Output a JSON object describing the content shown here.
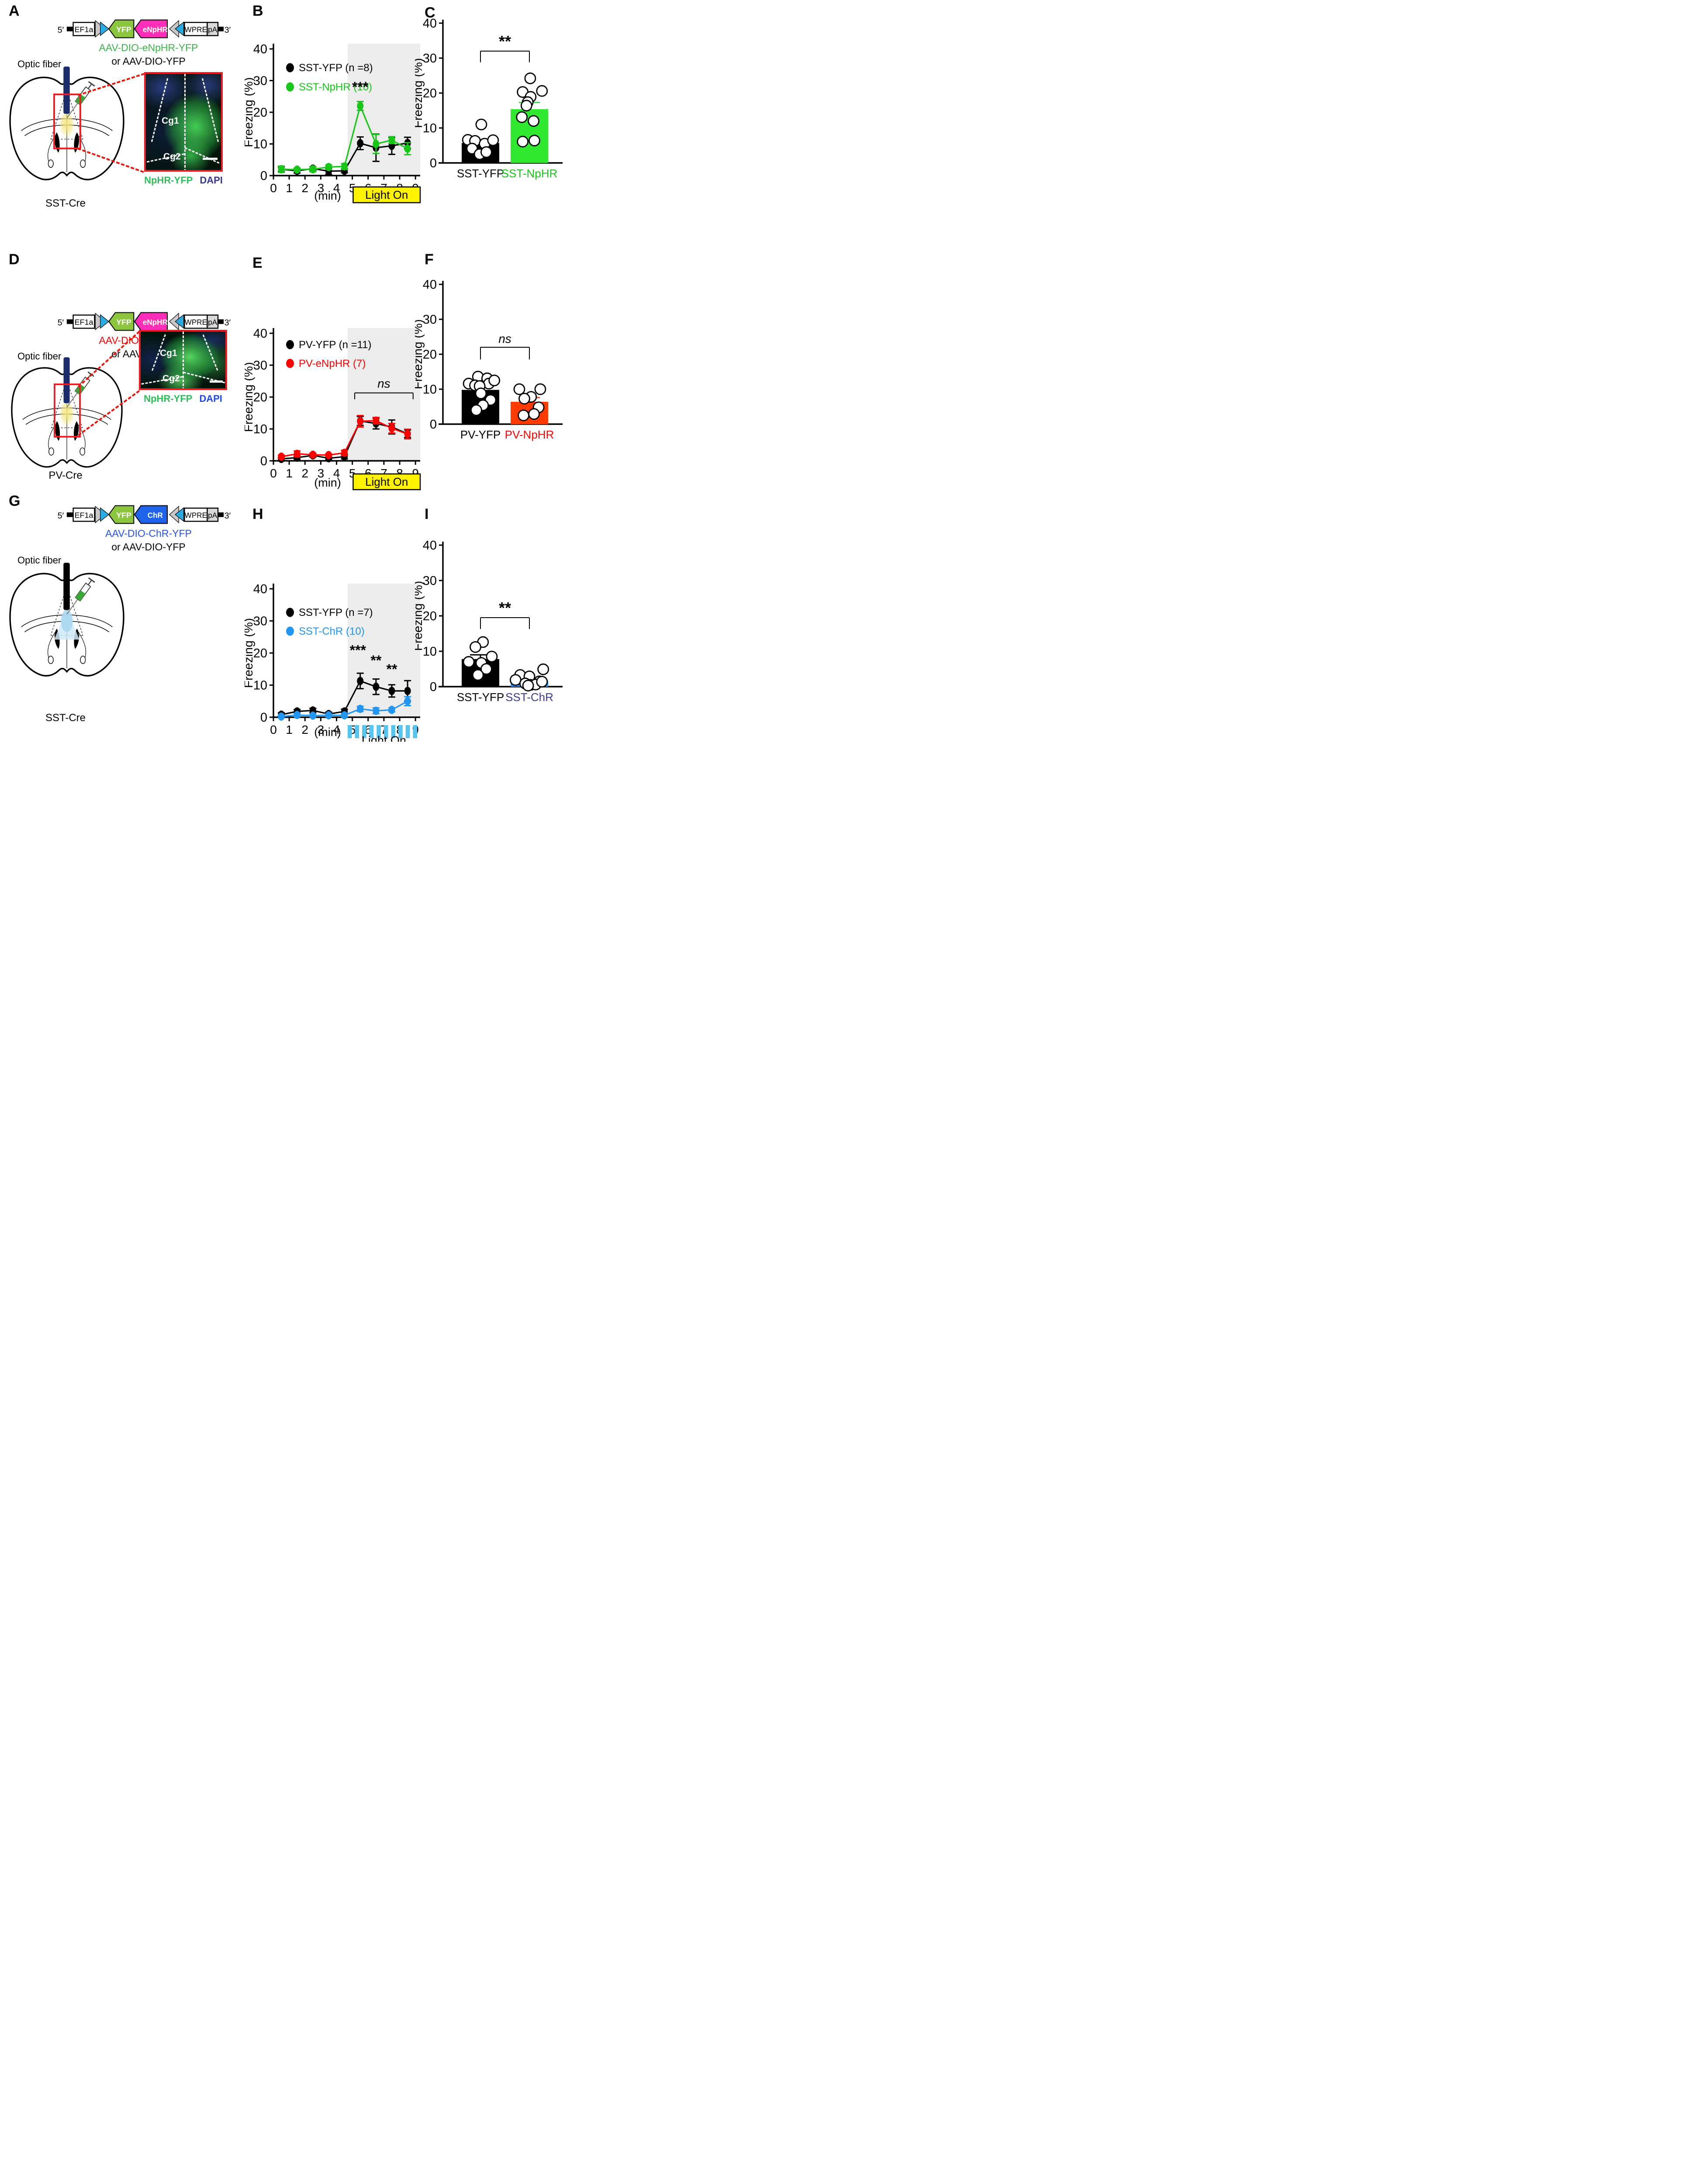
{
  "colors": {
    "green_series": "#17C617",
    "green_bar": "#2FE82F",
    "green_text": "#3BB54A",
    "stain_green": "#2DBE5A",
    "dapi_navy": "#35359B",
    "dapi_blue": "#1F49E8",
    "red": "#FF0000",
    "red_bar": "#FF3B00",
    "blue_series": "#2196F3",
    "blue_text": "#1A53E8",
    "blue_bar": "#1E90FF",
    "chr_box_blue": "#1E63E9",
    "chr_label_purple": "#3D3D94",
    "magenta": "#FF2DB8",
    "yfp_green": "#8CC63F",
    "lox_cyan": "#29ABE2",
    "lox_gray": "#C9C9C9",
    "yellow": "#FFF200",
    "shade_gray": "#ECECEC",
    "fiber_navy": "#1A2C6B",
    "fiber_black": "#000000",
    "light_dash_blue": "#58C5F0"
  },
  "panels": {
    "A": {
      "letter": "A",
      "construct": {
        "five": "5′",
        "three": "3′",
        "promoter": "EF1a",
        "gene1": "YFP",
        "gene2": "eNpHR",
        "gene2_color": "#FF2DB8",
        "wpre": "WPRE",
        "pa": "pA"
      },
      "virus1": "AAV-DIO-eNpHR-YFP",
      "virus1_color": "#3BB54A",
      "virus2": "or AAV-DIO-YFP",
      "optic_fiber": "Optic fiber",
      "inset": {
        "region_upper": "Cg1",
        "region_lower": "Cg2",
        "stain1": "NpHR-YFP",
        "stain1_color": "#2DBE5A",
        "stain2": "DAPI",
        "stain2_color": "#35359B"
      },
      "mouse": "SST-Cre"
    },
    "D": {
      "letter": "D",
      "construct": {
        "five": "5′",
        "three": "3′",
        "promoter": "EF1a",
        "gene1": "YFP",
        "gene2": "eNpHR",
        "gene2_color": "#FF2DB8",
        "wpre": "WPRE",
        "pa": "pA"
      },
      "virus1": "AAV-DIO-eNpHR-YFP",
      "virus1_color": "#FF0000",
      "virus2": "or AAV-DIO-YFP",
      "optic_fiber": "Optic fiber",
      "inset": {
        "region_upper": "Cg1",
        "region_lower": "Cg2",
        "stain1": "NpHR-YFP",
        "stain1_color": "#2DBE5A",
        "stain2": "DAPI",
        "stain2_color": "#1F49E8"
      },
      "mouse": "PV-Cre"
    },
    "G": {
      "letter": "G",
      "construct": {
        "five": "5′",
        "three": "3′",
        "promoter": "EF1a",
        "gene1": "YFP",
        "gene2": "ChR",
        "gene2_color": "#1E63E9",
        "wpre": "WPRE",
        "pa": "pA"
      },
      "virus1": "AAV-DIO-ChR-YFP",
      "virus1_color": "#2353E8",
      "virus2": "or AAV-DIO-YFP",
      "optic_fiber": "Optic fiber",
      "mouse": "SST-Cre"
    },
    "B": {
      "letter": "B"
    },
    "C": {
      "letter": "C"
    },
    "E": {
      "letter": "E"
    },
    "F": {
      "letter": "F"
    },
    "H": {
      "letter": "H"
    },
    "I": {
      "letter": "I"
    }
  },
  "chart_data": [
    {
      "id": "B",
      "type": "line",
      "xlabel": "(min)",
      "ylabel": "Freezing (%)",
      "xlim": [
        0,
        9.3
      ],
      "ylim": [
        0,
        40
      ],
      "xticks": [
        0,
        1,
        2,
        3,
        4,
        5,
        6,
        7,
        8,
        9
      ],
      "yticks": [
        0,
        10,
        20,
        30,
        40
      ],
      "shade_from": 4.7,
      "x": [
        0.5,
        1.5,
        2.5,
        3.5,
        4.5,
        5.5,
        6.5,
        7.5,
        8.5
      ],
      "series": [
        {
          "name": "SST-YFP (n =8)",
          "color": "#000000",
          "values": [
            2.0,
            1.5,
            2.2,
            1.4,
            1.5,
            10.2,
            8.8,
            9.4,
            10.3
          ],
          "errors": [
            0.8,
            0.7,
            0.6,
            1.0,
            0.6,
            2.0,
            4.3,
            2.7,
            1.8
          ]
        },
        {
          "name": "SST-NpHR (10)",
          "color": "#17C617",
          "values": [
            2.0,
            1.9,
            2.0,
            2.7,
            2.9,
            22.0,
            10.0,
            11.2,
            8.5
          ],
          "errors": [
            1.0,
            0.5,
            0.8,
            0.7,
            0.9,
            1.4,
            3.0,
            1.1,
            1.9
          ]
        }
      ],
      "annotations": [
        {
          "text": "***",
          "x": 5.5,
          "y": 26.5
        }
      ],
      "light": {
        "style": "solid",
        "label": "Light On",
        "from": 5.05,
        "to": 9.3
      }
    },
    {
      "id": "E",
      "type": "line",
      "xlabel": "(min)",
      "ylabel": "Freezing (%)",
      "xlim": [
        0,
        9.3
      ],
      "ylim": [
        0,
        40
      ],
      "xticks": [
        0,
        1,
        2,
        3,
        4,
        5,
        6,
        7,
        8,
        9
      ],
      "yticks": [
        0,
        10,
        20,
        30,
        40
      ],
      "shade_from": 4.7,
      "x": [
        0.5,
        1.5,
        2.5,
        3.5,
        4.5,
        5.5,
        6.5,
        7.5,
        8.5
      ],
      "series": [
        {
          "name": "PV-YFP (n =11)",
          "color": "#000000",
          "values": [
            0.6,
            1.0,
            1.7,
            0.8,
            1.3,
            12.5,
            11.7,
            10.6,
            8.5
          ],
          "errors": [
            0.5,
            0.5,
            0.6,
            0.5,
            0.7,
            1.4,
            1.7,
            2.2,
            1.2
          ]
        },
        {
          "name": "PV-eNpHR (7)",
          "color": "#FF0000",
          "values": [
            1.3,
            2.2,
            1.9,
            1.8,
            2.5,
            12.4,
            12.6,
            10.2,
            8.4
          ],
          "errors": [
            0.5,
            0.9,
            0.5,
            0.4,
            0.8,
            1.8,
            1.0,
            1.5,
            1.5
          ]
        }
      ],
      "bracket": {
        "label": "ns",
        "from": 5.15,
        "to": 8.85,
        "y": 21.3,
        "drop": 2.0
      },
      "light": {
        "style": "solid",
        "label": "Light On",
        "from": 5.05,
        "to": 9.3
      }
    },
    {
      "id": "H",
      "type": "line",
      "xlabel": "(min)",
      "ylabel": "Freezing (%)",
      "xlim": [
        0,
        9.3
      ],
      "ylim": [
        0,
        40
      ],
      "xticks": [
        0,
        1,
        2,
        3,
        4,
        5,
        6,
        7,
        8,
        9
      ],
      "yticks": [
        0,
        10,
        20,
        30,
        40
      ],
      "shade_from": 4.7,
      "x": [
        0.5,
        1.5,
        2.5,
        3.5,
        4.5,
        5.5,
        6.5,
        7.5,
        8.5
      ],
      "series": [
        {
          "name": "SST-YFP (n =7)",
          "color": "#000000",
          "values": [
            0.8,
            1.8,
            2.1,
            1.0,
            1.8,
            11.3,
            9.5,
            8.2,
            8.2
          ],
          "errors": [
            0.6,
            0.6,
            0.7,
            0.6,
            0.7,
            2.4,
            2.4,
            1.9,
            3.2
          ]
        },
        {
          "name": "SST-ChR (10)",
          "color": "#2196F3",
          "values": [
            0.2,
            0.7,
            0.5,
            0.6,
            0.6,
            2.6,
            2.0,
            2.3,
            5.0
          ],
          "errors": [
            0.4,
            0.5,
            0.4,
            0.4,
            0.5,
            0.8,
            0.9,
            0.6,
            1.4
          ]
        }
      ],
      "annotations": [
        {
          "text": "***",
          "x": 5.35,
          "y": 19.4
        },
        {
          "text": "**",
          "x": 6.5,
          "y": 16.2
        },
        {
          "text": "**",
          "x": 7.5,
          "y": 13.5
        }
      ],
      "light": {
        "style": "dashes",
        "label": "Light On",
        "from": 4.7,
        "to": 9.3,
        "n_dashes": 10
      }
    },
    {
      "id": "C",
      "type": "bar",
      "ylabel": "Freezing (%)",
      "ylim": [
        0,
        40
      ],
      "yticks": [
        0,
        10,
        20,
        30,
        40
      ],
      "groups": [
        {
          "label": "SST-YFP",
          "label_color": "#000000",
          "bar_color": "#000000",
          "err_color": "#000000",
          "mean": 5.7,
          "sem": 0.9,
          "points": [
            [
              -0.3,
              6.6
            ],
            [
              -0.13,
              6.3
            ],
            [
              0.1,
              5.5
            ],
            [
              0.3,
              6.5
            ],
            [
              -0.2,
              4.1
            ],
            [
              -0.02,
              2.5
            ],
            [
              0.14,
              3.1
            ],
            [
              0.02,
              11.0
            ]
          ]
        },
        {
          "label": "SST-NpHR",
          "label_color": "#17C617",
          "bar_color": "#2FE82F",
          "err_color": "#2FE82F",
          "mean": 15.4,
          "sem": 1.9,
          "points": [
            [
              0.02,
              24.2
            ],
            [
              -0.16,
              20.3
            ],
            [
              0.3,
              20.6
            ],
            [
              0.03,
              18.9
            ],
            [
              -0.04,
              17.4
            ],
            [
              -0.07,
              16.4
            ],
            [
              -0.18,
              13.1
            ],
            [
              0.1,
              12.0
            ],
            [
              -0.16,
              6.1
            ],
            [
              0.12,
              6.4
            ]
          ]
        }
      ],
      "sig": {
        "label": "**",
        "italic": false,
        "y": 32,
        "drop": 3.2
      }
    },
    {
      "id": "F",
      "type": "bar",
      "ylabel": "Freezing (%)",
      "ylim": [
        0,
        40
      ],
      "yticks": [
        0,
        10,
        20,
        30,
        40
      ],
      "groups": [
        {
          "label": "PV-YFP",
          "label_color": "#000000",
          "bar_color": "#000000",
          "err_color": "#000000",
          "mean": 9.8,
          "sem": 1.1,
          "points": [
            [
              -0.28,
              11.6
            ],
            [
              -0.06,
              13.6
            ],
            [
              0.16,
              13.1
            ],
            [
              -0.13,
              11.1
            ],
            [
              0.2,
              11.6
            ],
            [
              0.33,
              12.5
            ],
            [
              -0.02,
              10.9
            ],
            [
              0.01,
              8.8
            ],
            [
              0.24,
              6.9
            ],
            [
              0.06,
              5.4
            ],
            [
              -0.1,
              4.0
            ]
          ]
        },
        {
          "label": "PV-NpHR",
          "label_color": "#FF0000",
          "bar_color": "#FF3B00",
          "err_color": "#FF3B00",
          "mean": 6.4,
          "sem": 1.2,
          "points": [
            [
              -0.24,
              10.0
            ],
            [
              0.26,
              10.0
            ],
            [
              0.04,
              7.8
            ],
            [
              -0.12,
              7.3
            ],
            [
              0.22,
              4.8
            ],
            [
              0.11,
              2.9
            ],
            [
              -0.14,
              2.5
            ]
          ]
        }
      ],
      "sig": {
        "label": "ns",
        "italic": true,
        "y": 22,
        "drop": 3.5
      }
    },
    {
      "id": "I",
      "type": "bar",
      "ylabel": "Freezing (%)",
      "ylim": [
        0,
        40
      ],
      "yticks": [
        0,
        10,
        20,
        30,
        40
      ],
      "groups": [
        {
          "label": "SST-YFP",
          "label_color": "#000000",
          "bar_color": "#000000",
          "err_color": "#000000",
          "mean": 7.8,
          "sem": 1.2,
          "points": [
            [
              0.06,
              12.6
            ],
            [
              -0.12,
              11.2
            ],
            [
              0.27,
              8.5
            ],
            [
              -0.28,
              7.0
            ],
            [
              0.02,
              6.7
            ],
            [
              0.14,
              5.0
            ],
            [
              -0.06,
              3.3
            ]
          ]
        },
        {
          "label": "SST-ChR",
          "label_color": "#3D3D94",
          "bar_color": "#1E90FF",
          "err_color": "#1E90FF",
          "mean": 1.7,
          "sem": 0.6,
          "points": [
            [
              0.33,
              4.9
            ],
            [
              -0.22,
              3.3
            ],
            [
              0.0,
              2.9
            ],
            [
              -0.33,
              1.9
            ],
            [
              0.24,
              1.5
            ],
            [
              -0.1,
              0.9
            ],
            [
              0.03,
              0.5
            ],
            [
              0.15,
              0.6
            ],
            [
              -0.03,
              0.3
            ],
            [
              0.3,
              1.4
            ]
          ]
        }
      ],
      "sig": {
        "label": "**",
        "italic": false,
        "y": 19.5,
        "drop": 3.2
      }
    }
  ]
}
